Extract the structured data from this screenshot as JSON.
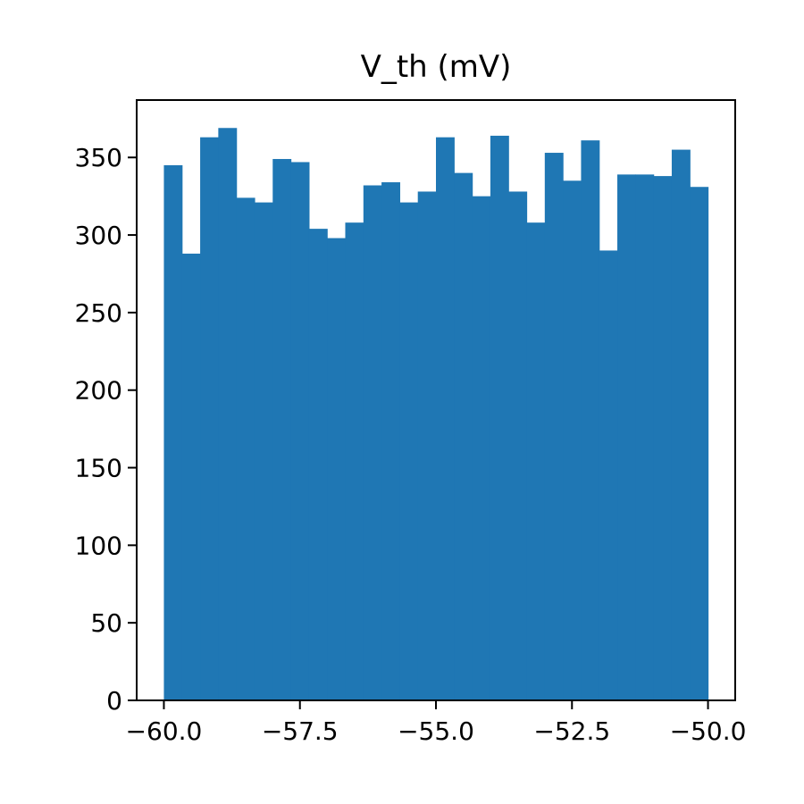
{
  "chart_data": {
    "type": "bar",
    "subtype": "histogram",
    "title": "V_th (mV)",
    "xlabel": "",
    "ylabel": "",
    "xlim": [
      -60.5,
      -49.5
    ],
    "ylim": [
      0,
      387
    ],
    "bin_edges": [
      -60.0,
      -59.6667,
      -59.3333,
      -59.0,
      -58.6667,
      -58.3333,
      -58.0,
      -57.6667,
      -57.3333,
      -57.0,
      -56.6667,
      -56.3333,
      -56.0,
      -55.6667,
      -55.3333,
      -55.0,
      -54.6667,
      -54.3333,
      -54.0,
      -53.6667,
      -53.3333,
      -53.0,
      -52.6667,
      -52.3333,
      -52.0,
      -51.6667,
      -51.3333,
      -51.0,
      -50.6667,
      -50.3333,
      -50.0
    ],
    "values": [
      345,
      288,
      363,
      369,
      324,
      321,
      349,
      347,
      304,
      298,
      308,
      332,
      334,
      321,
      328,
      363,
      340,
      325,
      364,
      328,
      308,
      353,
      335,
      361,
      290,
      339,
      339,
      338,
      355,
      331
    ],
    "x_ticks": [
      {
        "value": -60.0,
        "label": "−60.0"
      },
      {
        "value": -57.5,
        "label": "−57.5"
      },
      {
        "value": -55.0,
        "label": "−55.0"
      },
      {
        "value": -52.5,
        "label": "−52.5"
      },
      {
        "value": -50.0,
        "label": "−50.0"
      }
    ],
    "y_ticks": [
      {
        "value": 0,
        "label": "0"
      },
      {
        "value": 50,
        "label": "50"
      },
      {
        "value": 100,
        "label": "100"
      },
      {
        "value": 150,
        "label": "150"
      },
      {
        "value": 200,
        "label": "200"
      },
      {
        "value": 250,
        "label": "250"
      },
      {
        "value": 300,
        "label": "300"
      },
      {
        "value": 350,
        "label": "350"
      }
    ],
    "grid": false,
    "legend": "none",
    "bar_color": "#1f77b4"
  }
}
